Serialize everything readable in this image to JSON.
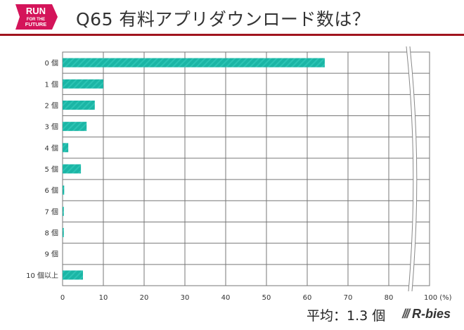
{
  "header": {
    "logo_text": [
      "RUN",
      "FOR THE",
      "FUTURE"
    ],
    "title": "Q65 有料アプリダウンロード数は？"
  },
  "footer": {
    "average": "平均：1.3 個",
    "brand": "R-bies"
  },
  "colors": {
    "bar": "#1bb5a5",
    "accent": "#a0141e",
    "logo": "#d4145a"
  },
  "chart_data": {
    "type": "bar",
    "orientation": "horizontal",
    "categories": [
      "0 個",
      "1 個",
      "2 個",
      "3 個",
      "4 個",
      "5 個",
      "6 個",
      "7 個",
      "8 個",
      "9 個",
      "10 個以上"
    ],
    "values": [
      64.3,
      10.0,
      7.9,
      5.9,
      1.4,
      4.5,
      0.4,
      0.3,
      0.3,
      0.0,
      5.0
    ],
    "xlim": [
      0,
      100
    ],
    "axis_break": [
      85,
      95
    ],
    "xticks": [
      "0",
      "10",
      "20",
      "30",
      "40",
      "50",
      "60",
      "70",
      "80",
      "100 (%)"
    ],
    "grid": true
  }
}
